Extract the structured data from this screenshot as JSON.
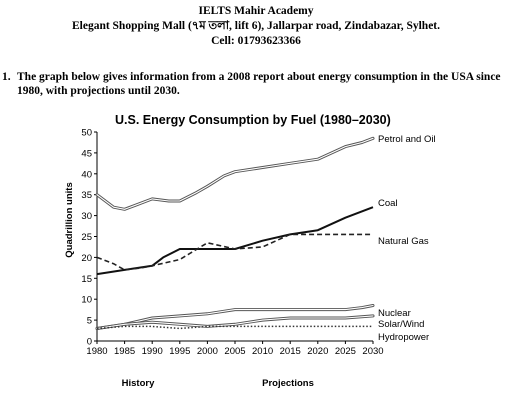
{
  "header": {
    "academy": "IELTS Mahir Academy",
    "address": "Elegant Shopping Mall (৭ম তলা, lift 6), Jallarpar road, Zindabazar, Sylhet.",
    "cell": "Cell: 01793623366"
  },
  "question": {
    "number": "1.",
    "text": "The graph below gives information from a 2008 report about energy consumption in the USA since 1980, with projections until 2030."
  },
  "chart_data": {
    "type": "line",
    "title": "U.S. Energy Consumption by Fuel (1980–2030)",
    "ylabel": "Quadrillion units",
    "xlabel": "",
    "ylim": [
      0,
      50
    ],
    "yticks": [
      0,
      5,
      10,
      15,
      20,
      25,
      30,
      35,
      40,
      45,
      50
    ],
    "xticks": [
      1980,
      1985,
      1990,
      1995,
      2000,
      2005,
      2010,
      2015,
      2020,
      2025,
      2030
    ],
    "xlim": [
      1980,
      2030
    ],
    "period_labels": [
      "History",
      "Projections"
    ],
    "grid": false,
    "series": [
      {
        "name": "Petrol and Oil",
        "style": "double",
        "x": [
          1980,
          1983,
          1985,
          1987,
          1990,
          1993,
          1995,
          1998,
          2000,
          2003,
          2005,
          2010,
          2015,
          2020,
          2025,
          2028,
          2030
        ],
        "y": [
          35,
          32,
          31.5,
          32.5,
          34,
          33.5,
          33.5,
          35.5,
          37,
          39.5,
          40.5,
          41.5,
          42.5,
          43.5,
          46.5,
          47.5,
          48.5
        ]
      },
      {
        "name": "Coal",
        "style": "solid",
        "x": [
          1980,
          1985,
          1990,
          1992,
          1995,
          2000,
          2005,
          2010,
          2015,
          2020,
          2025,
          2030
        ],
        "y": [
          16,
          17,
          18,
          20,
          22,
          22,
          22,
          24,
          25.5,
          26.5,
          29.5,
          32
        ]
      },
      {
        "name": "Natural Gas",
        "style": "dashed",
        "x": [
          1980,
          1983,
          1985,
          1988,
          1990,
          1995,
          2000,
          2005,
          2010,
          2015,
          2020,
          2025,
          2030
        ],
        "y": [
          20,
          18.5,
          17,
          17.5,
          18,
          19.5,
          23.5,
          22,
          22.5,
          25.5,
          25.5,
          25.5,
          25.5
        ]
      },
      {
        "name": "Nuclear",
        "style": "double",
        "x": [
          1980,
          1985,
          1990,
          1995,
          2000,
          2005,
          2010,
          2015,
          2020,
          2025,
          2028,
          2030
        ],
        "y": [
          3,
          4,
          5.5,
          6,
          6.5,
          7.5,
          7.5,
          7.5,
          7.5,
          7.5,
          8,
          8.5
        ]
      },
      {
        "name": "Solar/Wind",
        "style": "double",
        "x": [
          1980,
          1985,
          1990,
          1995,
          2000,
          2005,
          2010,
          2015,
          2020,
          2025,
          2030
        ],
        "y": [
          3,
          4,
          4.5,
          4,
          3.5,
          4,
          5,
          5.5,
          5.5,
          5.5,
          6
        ]
      },
      {
        "name": "Hydropower",
        "style": "dotted",
        "x": [
          1980,
          1985,
          1990,
          1995,
          2000,
          2005,
          2010,
          2015,
          2020,
          2025,
          2030
        ],
        "y": [
          3,
          3.5,
          3.5,
          3,
          3.5,
          3.5,
          3.5,
          3.5,
          3.5,
          3.5,
          3.5
        ]
      }
    ]
  }
}
